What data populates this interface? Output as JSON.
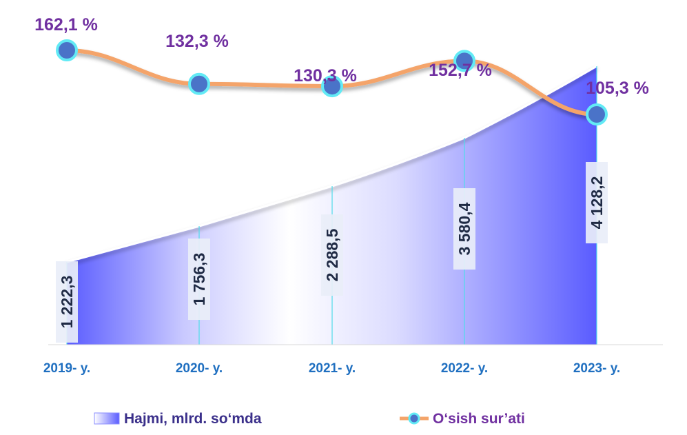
{
  "chart_data": {
    "type": "area",
    "categories": [
      "2019- y.",
      "2020- y.",
      "2021- y.",
      "2022- y.",
      "2023- y."
    ],
    "series": [
      {
        "name": "Hajmi, mlrd. so‘mda",
        "type": "area",
        "values": [
          1222.3,
          1756.3,
          2288.5,
          3580.4,
          4128.2
        ],
        "labels": [
          "1 222,3",
          "1 756,3",
          "2 288,5",
          "3 580,4",
          "4 128,2"
        ],
        "color": "#5a5cff"
      },
      {
        "name": "O‘sish sur’ati",
        "type": "line",
        "values": [
          162.1,
          132.3,
          130.3,
          152.7,
          105.3
        ],
        "labels": [
          "162,1 %",
          "132,3 %",
          "130,3 %",
          "152,7 %",
          "105,3 %"
        ],
        "color": "#f4a46a",
        "marker_color": "#4a73c8",
        "marker_ring": "#62eaf5"
      }
    ],
    "legend": [
      "Hajmi, mlrd. so‘mda",
      "O‘sish sur’ati"
    ],
    "legend_position": "bottom",
    "category_label_color": "#1f6fc0",
    "percent_label_color": "#7030a0",
    "grid": false
  }
}
